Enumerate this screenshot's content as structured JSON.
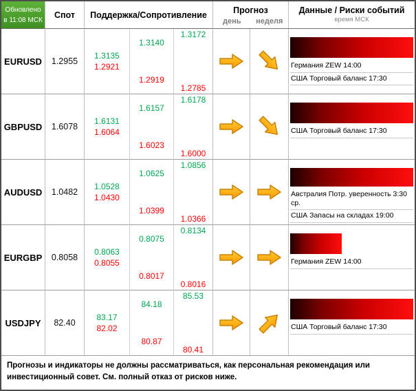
{
  "header": {
    "updated_line1": "Обновлено",
    "updated_line2": "в 11:08 МСК",
    "spot": "Спот",
    "support_resistance": "Поддержка/Сопротивление",
    "forecast": "Прогноз",
    "day": "день",
    "week": "неделя",
    "data_risks": "Данные / Риски событий",
    "time_note": "время МСК"
  },
  "colors": {
    "resistance_green": "#00A651",
    "support_red": "#FF0000",
    "arrow_orange": "#FFA41C",
    "updated_bg_green": "#4CA232",
    "risk_bar_dark": "#1C0000",
    "risk_bar_bright": "#FF0E0E"
  },
  "rows": [
    {
      "pair": "EURUSD",
      "spot": "1.2955",
      "levels": {
        "r1": "1.3135",
        "s1": "1.2921",
        "r2": "1.3140",
        "s2": "1.2919",
        "r3": "1.3172",
        "s3": "1.2785"
      },
      "forecast": {
        "day": "right",
        "week": "down-right"
      },
      "risk_bar_pct": 100,
      "events": [
        "Германия ZEW 14:00",
        "США Торговый баланс 17:30"
      ]
    },
    {
      "pair": "GBPUSD",
      "spot": "1.6078",
      "levels": {
        "r1": "1.6131",
        "s1": "1.6064",
        "r2": "1.6157",
        "s2": "1.6023",
        "r3": "1.6178",
        "s3": "1.6000"
      },
      "forecast": {
        "day": "right",
        "week": "down-right"
      },
      "risk_bar_pct": 100,
      "events": [
        "США Торговый баланс 17:30"
      ]
    },
    {
      "pair": "AUDUSD",
      "spot": "1.0482",
      "levels": {
        "r1": "1.0528",
        "s1": "1.0430",
        "r2": "1.0625",
        "s2": "1.0399",
        "r3": "1.0856",
        "s3": "1.0366"
      },
      "forecast": {
        "day": "right",
        "week": "right"
      },
      "risk_bar_pct": 100,
      "events": [
        "Австралия Потр. уверенность 3:30 ср.",
        "США Запасы на складах 19:00"
      ]
    },
    {
      "pair": "EURGBP",
      "spot": "0.8058",
      "levels": {
        "r1": "0.8063",
        "s1": "0.8055",
        "r2": "0.8075",
        "s2": "0.8017",
        "r3": "0.8134",
        "s3": "0.8016"
      },
      "forecast": {
        "day": "right",
        "week": "right"
      },
      "risk_bar_pct": 42,
      "events": [
        "Германия ZEW 14:00"
      ]
    },
    {
      "pair": "USDJPY",
      "spot": "82.40",
      "levels": {
        "r1": "83.17",
        "s1": "82.02",
        "r2": "84.18",
        "s2": "80.87",
        "r3": "85.53",
        "s3": "80.41"
      },
      "forecast": {
        "day": "right",
        "week": "up-right"
      },
      "risk_bar_pct": 100,
      "events": [
        "США Торговый баланс 17:30"
      ]
    }
  ],
  "footer": "Прогнозы и индикаторы не должны рассматриваться, как персональная рекомендация или инвестиционный совет. См. полный отказ от рисков ниже."
}
